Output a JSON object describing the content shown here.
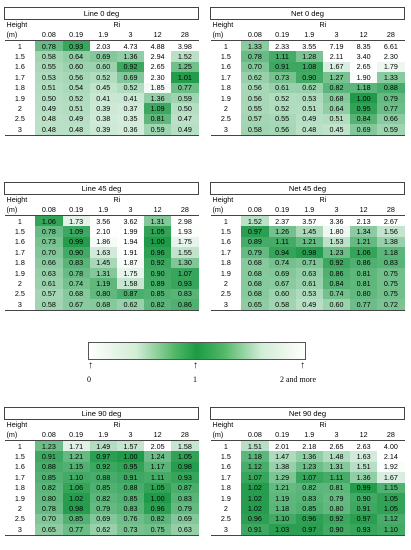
{
  "tables": [
    {
      "id": "line-0",
      "title": "Line 0 deg",
      "height_label": "Height",
      "height_unit": "(m)",
      "ri_label": "Ri",
      "columns": [
        "0.08",
        "0.19",
        "1.9",
        "3",
        "12",
        "28"
      ],
      "rows": [
        {
          "h": "1",
          "v": [
            "0.78",
            "0.93",
            "2.03",
            "4.73",
            "4.88",
            "3.98"
          ]
        },
        {
          "h": "1.5",
          "v": [
            "0.58",
            "0.64",
            "0.69",
            "1.36",
            "2.94",
            "1.52"
          ]
        },
        {
          "h": "1.6",
          "v": [
            "0.55",
            "0.60",
            "0.60",
            "0.92",
            "2.65",
            "1.25"
          ]
        },
        {
          "h": "1.7",
          "v": [
            "0.53",
            "0.56",
            "0.52",
            "0.69",
            "2.30",
            "1.01"
          ]
        },
        {
          "h": "1.8",
          "v": [
            "0.51",
            "0.54",
            "0.45",
            "0.52",
            "1.85",
            "0.77"
          ]
        },
        {
          "h": "1.9",
          "v": [
            "0.50",
            "0.52",
            "0.41",
            "0.41",
            "1.36",
            "0.59"
          ]
        },
        {
          "h": "2",
          "v": [
            "0.49",
            "0.51",
            "0.39",
            "0.37",
            "1.09",
            "0.50"
          ]
        },
        {
          "h": "2.5",
          "v": [
            "0.48",
            "0.49",
            "0.38",
            "0.35",
            "0.81",
            "0.47"
          ]
        },
        {
          "h": "3",
          "v": [
            "0.48",
            "0.48",
            "0.39",
            "0.36",
            "0.59",
            "0.49"
          ]
        }
      ]
    },
    {
      "id": "net-0",
      "title": "Net 0 deg",
      "height_label": "Height",
      "height_unit": "(m)",
      "ri_label": "Ri",
      "columns": [
        "0.08",
        "0.19",
        "1.9",
        "3",
        "12",
        "28"
      ],
      "rows": [
        {
          "h": "1",
          "v": [
            "1.33",
            "2.33",
            "3.55",
            "7.19",
            "8.35",
            "6.61"
          ]
        },
        {
          "h": "1.5",
          "v": [
            "0.78",
            "1.11",
            "1.28",
            "2.11",
            "3.40",
            "2.30"
          ]
        },
        {
          "h": "1.6",
          "v": [
            "0.70",
            "0.91",
            "1.08",
            "1.67",
            "2.65",
            "1.79"
          ]
        },
        {
          "h": "1.7",
          "v": [
            "0.62",
            "0.73",
            "0.90",
            "1.27",
            "1.90",
            "1.33"
          ]
        },
        {
          "h": "1.8",
          "v": [
            "0.56",
            "0.61",
            "0.62",
            "0.82",
            "1.18",
            "0.88"
          ]
        },
        {
          "h": "1.9",
          "v": [
            "0.56",
            "0.52",
            "0.53",
            "0.68",
            "1.00",
            "0.79"
          ]
        },
        {
          "h": "2",
          "v": [
            "0.55",
            "0.52",
            "0.51",
            "0.64",
            "0.95",
            "0.77"
          ]
        },
        {
          "h": "2.5",
          "v": [
            "0.57",
            "0.55",
            "0.49",
            "0.51",
            "0.84",
            "0.66"
          ]
        },
        {
          "h": "3",
          "v": [
            "0.58",
            "0.56",
            "0.48",
            "0.45",
            "0.69",
            "0.59"
          ]
        }
      ]
    },
    {
      "id": "line-45",
      "title": "Line 45 deg",
      "height_label": "Height",
      "height_unit": "(m)",
      "ri_label": "Ri",
      "columns": [
        "0.08",
        "0.19",
        "1.9",
        "3",
        "12",
        "28"
      ],
      "rows": [
        {
          "h": "1",
          "v": [
            "1.06",
            "1.73",
            "3.56",
            "3.62",
            "1.31",
            "2.98"
          ]
        },
        {
          "h": "1.5",
          "v": [
            "0.78",
            "1.09",
            "2.10",
            "1.99",
            "1.05",
            "1.93"
          ]
        },
        {
          "h": "1.6",
          "v": [
            "0.73",
            "0.99",
            "1.86",
            "1.94",
            "1.00",
            "1.75"
          ]
        },
        {
          "h": "1.7",
          "v": [
            "0.70",
            "0.90",
            "1.63",
            "1.91",
            "0.96",
            "1.55"
          ]
        },
        {
          "h": "1.8",
          "v": [
            "0.66",
            "0.83",
            "1.45",
            "1.87",
            "0.92",
            "1.30"
          ]
        },
        {
          "h": "1.9",
          "v": [
            "0.63",
            "0.78",
            "1.31",
            "1.75",
            "0.90",
            "1.07"
          ]
        },
        {
          "h": "2",
          "v": [
            "0.61",
            "0.74",
            "1.19",
            "1.58",
            "0.89",
            "0.93"
          ]
        },
        {
          "h": "2.5",
          "v": [
            "0.57",
            "0.68",
            "0.80",
            "0.87",
            "0.85",
            "0.83"
          ]
        },
        {
          "h": "3",
          "v": [
            "0.58",
            "0.67",
            "0.68",
            "0.62",
            "0.82",
            "0.86"
          ]
        }
      ]
    },
    {
      "id": "net-45",
      "title": "Net 45 deg",
      "height_label": "Height",
      "height_unit": "(m)",
      "ri_label": "Ri",
      "columns": [
        "0.08",
        "0.19",
        "1.9",
        "3",
        "12",
        "28"
      ],
      "rows": [
        {
          "h": "1",
          "v": [
            "1.52",
            "2.37",
            "3.57",
            "3.36",
            "2.13",
            "2.67"
          ]
        },
        {
          "h": "1.5",
          "v": [
            "0.97",
            "1.26",
            "1.45",
            "1.80",
            "1.34",
            "1.56"
          ]
        },
        {
          "h": "1.6",
          "v": [
            "0.89",
            "1.11",
            "1.21",
            "1.53",
            "1.21",
            "1.38"
          ]
        },
        {
          "h": "1.7",
          "v": [
            "0.79",
            "0.94",
            "0.98",
            "1.23",
            "1.06",
            "1.18"
          ]
        },
        {
          "h": "1.8",
          "v": [
            "0.68",
            "0.74",
            "0.71",
            "0.92",
            "0.86",
            "0.83"
          ]
        },
        {
          "h": "1.9",
          "v": [
            "0.68",
            "0.69",
            "0.63",
            "0.86",
            "0.81",
            "0.75"
          ]
        },
        {
          "h": "2",
          "v": [
            "0.68",
            "0.67",
            "0.61",
            "0.84",
            "0.81",
            "0.75"
          ]
        },
        {
          "h": "2.5",
          "v": [
            "0.68",
            "0.60",
            "0.53",
            "0.74",
            "0.80",
            "0.75"
          ]
        },
        {
          "h": "3",
          "v": [
            "0.65",
            "0.58",
            "0.49",
            "0.60",
            "0.77",
            "0.72"
          ]
        }
      ]
    },
    {
      "id": "line-90",
      "title": "Line 90 deg",
      "height_label": "Height",
      "height_unit": "(m)",
      "ri_label": "Ri",
      "columns": [
        "0.08",
        "0.19",
        "1.9",
        "3",
        "12",
        "28"
      ],
      "rows": [
        {
          "h": "1",
          "v": [
            "1.23",
            "1.71",
            "1.49",
            "1.57",
            "2.05",
            "1.58"
          ]
        },
        {
          "h": "1.5",
          "v": [
            "0.91",
            "1.21",
            "0.97",
            "1.00",
            "1.24",
            "1.05"
          ]
        },
        {
          "h": "1.6",
          "v": [
            "0.88",
            "1.15",
            "0.92",
            "0.95",
            "1.17",
            "0.98"
          ]
        },
        {
          "h": "1.7",
          "v": [
            "0.85",
            "1.10",
            "0.88",
            "0.91",
            "1.11",
            "0.93"
          ]
        },
        {
          "h": "1.8",
          "v": [
            "0.82",
            "1.06",
            "0.85",
            "0.88",
            "1.05",
            "0.87"
          ]
        },
        {
          "h": "1.9",
          "v": [
            "0.80",
            "1.02",
            "0.82",
            "0.85",
            "1.00",
            "0.83"
          ]
        },
        {
          "h": "2",
          "v": [
            "0.78",
            "0.98",
            "0.79",
            "0.83",
            "0.96",
            "0.79"
          ]
        },
        {
          "h": "2.5",
          "v": [
            "0.70",
            "0.85",
            "0.69",
            "0.76",
            "0.82",
            "0.69"
          ]
        },
        {
          "h": "3",
          "v": [
            "0.65",
            "0.77",
            "0.62",
            "0.73",
            "0.75",
            "0.63"
          ]
        }
      ]
    },
    {
      "id": "net-90",
      "title": "Net 90 deg",
      "height_label": "Height",
      "height_unit": "(m)",
      "ri_label": "Ri",
      "columns": [
        "0.08",
        "0.19",
        "1.9",
        "3",
        "12",
        "28"
      ],
      "rows": [
        {
          "h": "1",
          "v": [
            "1.51",
            "2.01",
            "2.18",
            "2.65",
            "2.63",
            "4.00"
          ]
        },
        {
          "h": "1.5",
          "v": [
            "1.18",
            "1.47",
            "1.36",
            "1.48",
            "1.63",
            "2.14"
          ]
        },
        {
          "h": "1.6",
          "v": [
            "1.12",
            "1.38",
            "1.23",
            "1.31",
            "1.51",
            "1.92"
          ]
        },
        {
          "h": "1.7",
          "v": [
            "1.07",
            "1.29",
            "1.07",
            "1.11",
            "1.36",
            "1.67"
          ]
        },
        {
          "h": "1.8",
          "v": [
            "1.02",
            "1.21",
            "0.82",
            "0.81",
            "0.99",
            "1.15"
          ]
        },
        {
          "h": "1.9",
          "v": [
            "1.02",
            "1.19",
            "0.83",
            "0.79",
            "0.90",
            "1.05"
          ]
        },
        {
          "h": "2",
          "v": [
            "1.02",
            "1.18",
            "0.85",
            "0.80",
            "0.91",
            "1.05"
          ]
        },
        {
          "h": "2.5",
          "v": [
            "0.96",
            "1.10",
            "0.96",
            "0.92",
            "0.97",
            "1.12"
          ]
        },
        {
          "h": "3",
          "v": [
            "0.91",
            "1.03",
            "0.97",
            "0.90",
            "0.93",
            "1.10"
          ]
        }
      ]
    }
  ],
  "legend": {
    "labels": [
      "0",
      "1",
      "2 and more"
    ],
    "colors": {
      "low": "#ffffff",
      "mid": "#1d9a46",
      "high": "#ffffff"
    }
  }
}
